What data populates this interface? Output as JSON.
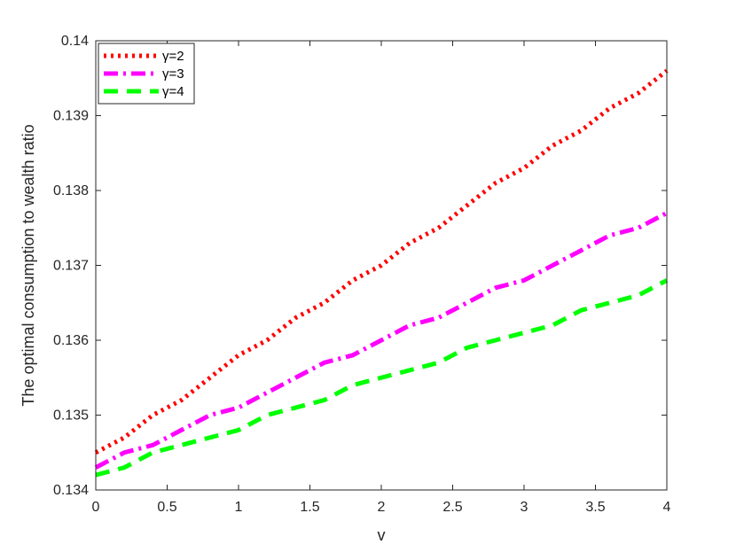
{
  "chart_data": {
    "type": "line",
    "title": "",
    "xlabel": "v",
    "ylabel": "The optimal consumption to wealth ratio",
    "xlim": [
      0,
      4
    ],
    "ylim": [
      0.134,
      0.14
    ],
    "xticks": [
      0,
      0.5,
      1,
      1.5,
      2,
      2.5,
      3,
      3.5,
      4
    ],
    "xtick_labels": [
      "0",
      "0.5",
      "1",
      "1.5",
      "2",
      "2.5",
      "3",
      "3.5",
      "4"
    ],
    "yticks": [
      0.134,
      0.135,
      0.136,
      0.137,
      0.138,
      0.139,
      0.14
    ],
    "ytick_labels": [
      "0.134",
      "0.135",
      "0.136",
      "0.137",
      "0.138",
      "0.139",
      "0.14"
    ],
    "grid": false,
    "legend_position": "top-left",
    "x": [
      0,
      0.2,
      0.4,
      0.6,
      0.8,
      1.0,
      1.2,
      1.4,
      1.6,
      1.8,
      2.0,
      2.2,
      2.4,
      2.6,
      2.8,
      3.0,
      3.2,
      3.4,
      3.6,
      3.8,
      4.0
    ],
    "series": [
      {
        "name": "γ=2",
        "color": "#ff0000",
        "style": "dotted",
        "values": [
          0.1345,
          0.1347,
          0.135,
          0.1352,
          0.1355,
          0.1358,
          0.136,
          0.1363,
          0.1365,
          0.1368,
          0.137,
          0.1373,
          0.1375,
          0.1378,
          0.1381,
          0.1383,
          0.1386,
          0.1388,
          0.1391,
          0.1393,
          0.1396
        ]
      },
      {
        "name": "γ=3",
        "color": "#ff00ff",
        "style": "dashdot",
        "values": [
          0.1343,
          0.1345,
          0.1346,
          0.1348,
          0.135,
          0.1351,
          0.1353,
          0.1355,
          0.1357,
          0.1358,
          0.136,
          0.1362,
          0.1363,
          0.1365,
          0.1367,
          0.1368,
          0.137,
          0.1372,
          0.1374,
          0.1375,
          0.1377
        ]
      },
      {
        "name": "γ=4",
        "color": "#00ff00",
        "style": "dashed",
        "values": [
          0.1342,
          0.1343,
          0.1345,
          0.1346,
          0.1347,
          0.1348,
          0.135,
          0.1351,
          0.1352,
          0.1354,
          0.1355,
          0.1356,
          0.1357,
          0.1359,
          0.136,
          0.1361,
          0.1362,
          0.1364,
          0.1365,
          0.1366,
          0.1368
        ]
      }
    ]
  }
}
